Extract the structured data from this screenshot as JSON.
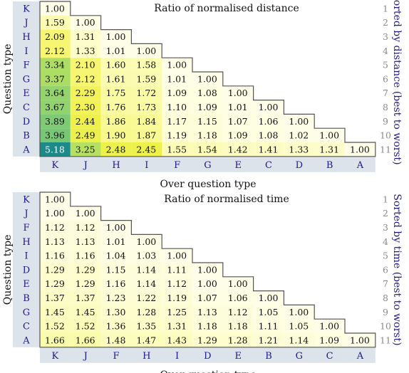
{
  "colors": {
    "label_blue": "#1a1a8c",
    "row_number_gray": "#8a8a8a",
    "header_band": "#dde3ea",
    "cell_border": "#555555",
    "colormap": [
      "#fefee8",
      "#fbfba8",
      "#f2f24a",
      "#c3e55c",
      "#86cf72",
      "#47ac80",
      "#1a8a8a"
    ],
    "colormap_range": [
      1.0,
      5.2
    ]
  },
  "chart_data": [
    {
      "type": "heatmap",
      "title": "Ratio of normalised distance",
      "xlabel": "Over question type",
      "ylabel": "Question type",
      "right_label": "Sorted by distance (best to worst)",
      "rows": [
        "K",
        "J",
        "H",
        "I",
        "F",
        "G",
        "E",
        "C",
        "D",
        "B",
        "A"
      ],
      "cols": [
        "K",
        "J",
        "H",
        "I",
        "F",
        "G",
        "E",
        "C",
        "D",
        "B",
        "A"
      ],
      "row_numbers": [
        "1",
        "2",
        "3",
        "4",
        "5",
        "6",
        "7",
        "8",
        "9",
        "10",
        "11"
      ],
      "values": [
        [
          "1.00"
        ],
        [
          "1.59",
          "1.00"
        ],
        [
          "2.09",
          "1.31",
          "1.00"
        ],
        [
          "2.12",
          "1.33",
          "1.01",
          "1.00"
        ],
        [
          "3.34",
          "2.10",
          "1.60",
          "1.58",
          "1.00"
        ],
        [
          "3.37",
          "2.12",
          "1.61",
          "1.59",
          "1.01",
          "1.00"
        ],
        [
          "3.64",
          "2.29",
          "1.75",
          "1.72",
          "1.09",
          "1.08",
          "1.00"
        ],
        [
          "3.67",
          "2.30",
          "1.76",
          "1.73",
          "1.10",
          "1.09",
          "1.01",
          "1.00"
        ],
        [
          "3.89",
          "2.44",
          "1.86",
          "1.84",
          "1.17",
          "1.15",
          "1.07",
          "1.06",
          "1.00"
        ],
        [
          "3.96",
          "2.49",
          "1.90",
          "1.87",
          "1.19",
          "1.18",
          "1.09",
          "1.08",
          "1.02",
          "1.00"
        ],
        [
          "5.18",
          "3.25",
          "2.48",
          "2.45",
          "1.55",
          "1.54",
          "1.42",
          "1.41",
          "1.33",
          "1.31",
          "1.00"
        ]
      ]
    },
    {
      "type": "heatmap",
      "title": "Ratio of normalised time",
      "xlabel": "Over question type",
      "ylabel": "Question type",
      "right_label": "Sorted by time (best to worst)",
      "rows": [
        "K",
        "J",
        "F",
        "H",
        "I",
        "D",
        "E",
        "B",
        "G",
        "C",
        "A"
      ],
      "cols": [
        "K",
        "J",
        "F",
        "H",
        "I",
        "D",
        "E",
        "B",
        "G",
        "C",
        "A"
      ],
      "row_numbers": [
        "1",
        "2",
        "3",
        "4",
        "5",
        "6",
        "7",
        "8",
        "9",
        "10",
        "11"
      ],
      "values": [
        [
          "1.00"
        ],
        [
          "1.00",
          "1.00"
        ],
        [
          "1.12",
          "1.12",
          "1.00"
        ],
        [
          "1.13",
          "1.13",
          "1.01",
          "1.00"
        ],
        [
          "1.16",
          "1.16",
          "1.04",
          "1.03",
          "1.00"
        ],
        [
          "1.29",
          "1.29",
          "1.15",
          "1.14",
          "1.11",
          "1.00"
        ],
        [
          "1.29",
          "1.29",
          "1.16",
          "1.14",
          "1.12",
          "1.00",
          "1.00"
        ],
        [
          "1.37",
          "1.37",
          "1.23",
          "1.22",
          "1.19",
          "1.07",
          "1.06",
          "1.00"
        ],
        [
          "1.45",
          "1.45",
          "1.30",
          "1.28",
          "1.25",
          "1.13",
          "1.12",
          "1.05",
          "1.00"
        ],
        [
          "1.52",
          "1.52",
          "1.36",
          "1.35",
          "1.31",
          "1.18",
          "1.18",
          "1.11",
          "1.05",
          "1.00"
        ],
        [
          "1.66",
          "1.66",
          "1.48",
          "1.47",
          "1.43",
          "1.29",
          "1.28",
          "1.21",
          "1.14",
          "1.09",
          "1.00"
        ]
      ]
    }
  ]
}
